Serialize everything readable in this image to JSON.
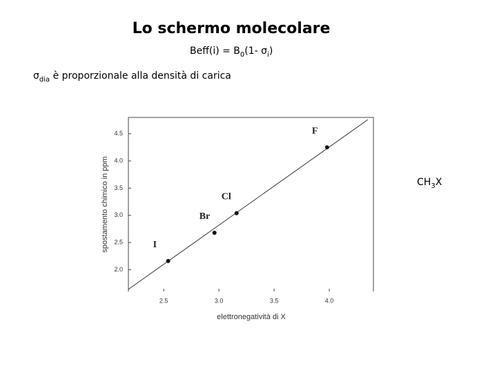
{
  "slide": {
    "title": "Lo schermo molecolare",
    "formula": [
      "Beff(i) = B",
      "0",
      "(1- ",
      "σ",
      "i",
      ")"
    ],
    "statement": [
      "σ",
      "dia",
      " è proporzionale alla densità di carica"
    ],
    "molecule": [
      "CH",
      "3",
      "X"
    ]
  },
  "chart_data": {
    "type": "scatter",
    "x_label": "elettronegatività di X",
    "y_label": "spostamento chimico in ppm",
    "labels": [
      "I",
      "Br",
      "Cl",
      "F"
    ],
    "x": [
      2.54,
      2.96,
      3.16,
      3.98
    ],
    "values": [
      2.16,
      2.68,
      3.04,
      4.25
    ],
    "color": "#111111",
    "fit_line": {
      "x": [
        2.18,
        4.35
      ],
      "values": [
        1.64,
        4.76
      ],
      "color": "#333333"
    },
    "xlim": [
      2.18,
      4.4
    ],
    "ylim": [
      1.6,
      4.8
    ],
    "xticks": [
      2.5,
      {
        "value": 3,
        "label": "3.0"
      },
      3.5,
      {
        "value": 4,
        "label": "4.0"
      }
    ],
    "yticks": [
      {
        "value": 2,
        "label": "2.0"
      },
      2.5,
      {
        "value": 3,
        "label": "3.0"
      },
      3.5,
      {
        "value": 4,
        "label": "4.0"
      },
      4.5
    ]
  }
}
